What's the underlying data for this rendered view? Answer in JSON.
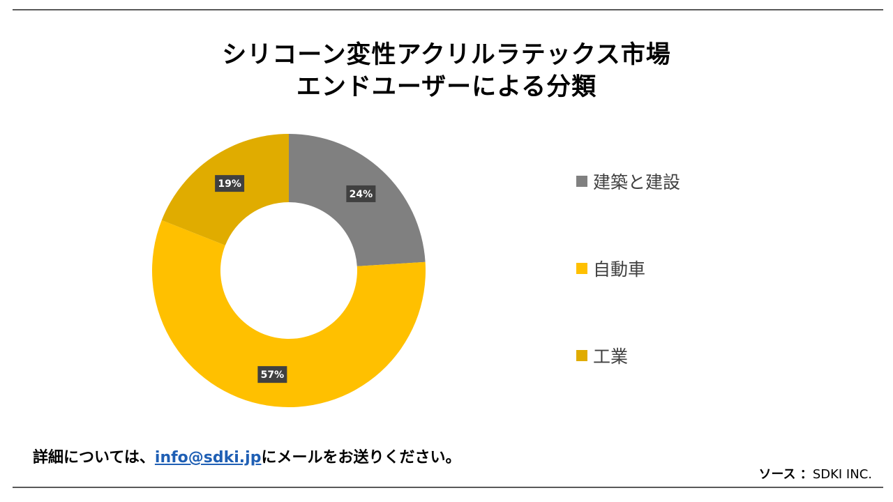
{
  "title": {
    "line1": "シリコーン変性アクリルラテックス市場",
    "line2": "エンドユーザーによる分類"
  },
  "chart_data": {
    "type": "pie",
    "donut": true,
    "categories": [
      "建築と建設",
      "自動車",
      "工業"
    ],
    "values": [
      24,
      57,
      19
    ],
    "data_labels": [
      "24%",
      "57%",
      "19%"
    ],
    "colors": [
      "#808080",
      "#FFC000",
      "#E0AC00"
    ],
    "legend_position": "right",
    "title": "シリコーン変性アクリルラテックス市場 エンドユーザーによる分類"
  },
  "footer": {
    "note_prefix": "詳細については、",
    "email": "info@sdki.jp",
    "note_suffix": "にメールをお送りください。",
    "source_label": "ソース ：",
    "source_value": "SDKI INC."
  }
}
